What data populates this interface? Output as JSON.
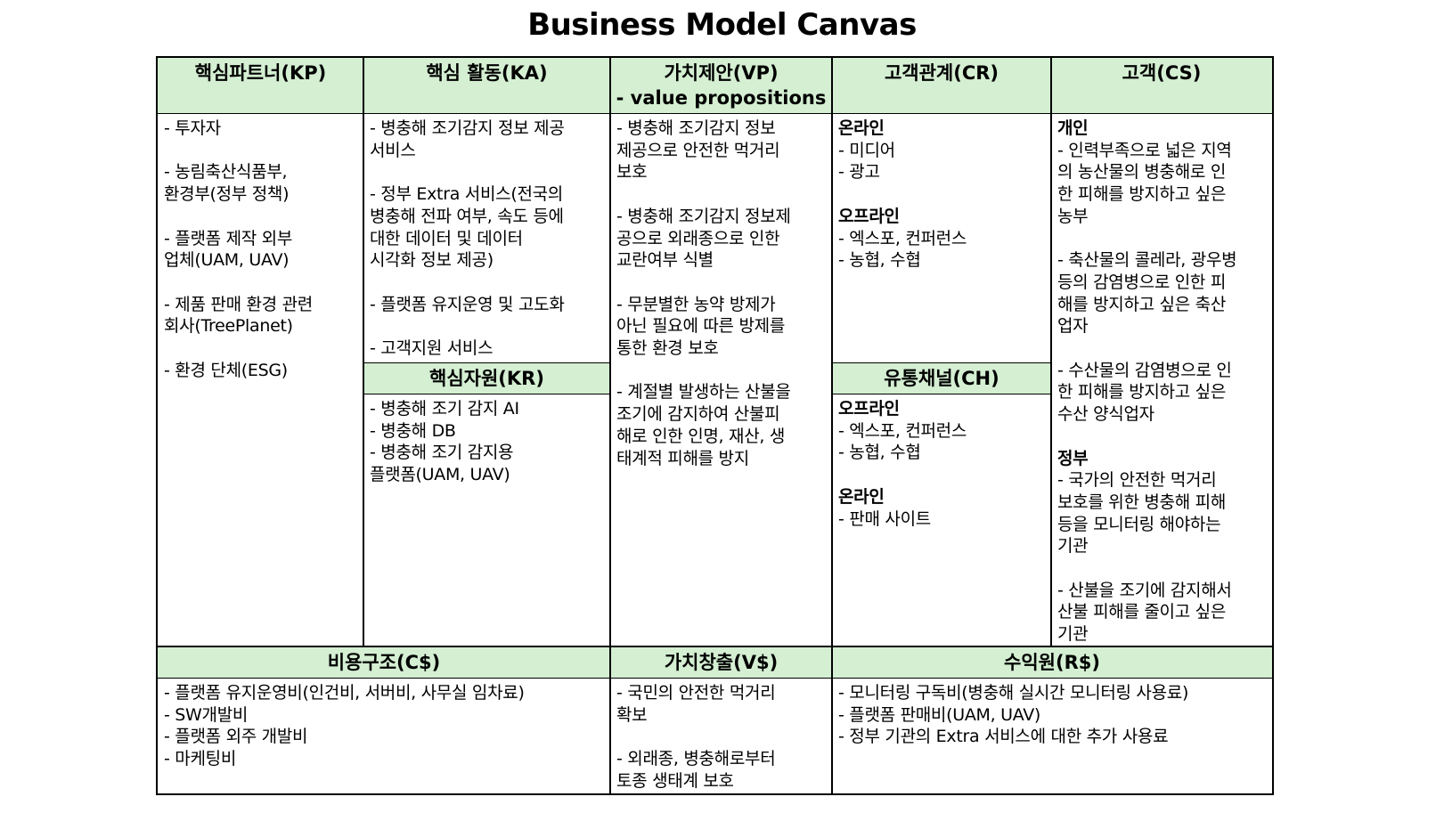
{
  "title": "Business Model Canvas",
  "kp": {
    "header": "핵심파트너(KP)",
    "body": "- 투자자\n\n- 농림축산식품부,\n환경부(정부 정책)\n\n- 플랫폼 제작 외부\n업체(UAM, UAV)\n\n- 제품 판매 환경 관련\n회사(TreePlanet)\n\n- 환경 단체(ESG)"
  },
  "ka": {
    "header": "핵심 활동(KA)",
    "body": "- 병충해 조기감지 정보 제공\n서비스\n\n- 정부 Extra 서비스(전국의\n병충해 전파 여부, 속도 등에\n대한 데이터 및 데이터\n시각화 정보 제공)\n\n- 플랫폼 유지운영 및 고도화\n\n- 고객지원 서비스"
  },
  "kr": {
    "header": "핵심자원(KR)",
    "body": "- 병충해 조기 감지 AI\n- 병충해 DB\n- 병충해 조기 감지용\n플랫폼(UAM, UAV)"
  },
  "vp": {
    "header_line1": "가치제안(VP)",
    "header_line2": "- value propositions",
    "body": "- 병충해 조기감지 정보\n제공으로 안전한 먹거리\n보호\n\n- 병충해 조기감지 정보제\n공으로 외래종으로 인한\n교란여부 식별\n\n- 무분별한 농약 방제가\n아닌 필요에 따른 방제를\n통한 환경 보호\n\n- 계절별 발생하는 산불을\n조기에 감지하여 산불피\n해로 인한 인명, 재산, 생\n태계적 피해를 방지"
  },
  "cr": {
    "header": "고객관계(CR)",
    "group1_title": "온라인",
    "group1_body": "- 미디어\n- 광고",
    "group2_title": "오프라인",
    "group2_body": "- 엑스포, 컨퍼런스\n- 농협, 수협"
  },
  "ch": {
    "header": "유통채널(CH)",
    "group1_title": "오프라인",
    "group1_body": "- 엑스포, 컨퍼런스\n- 농협, 수협",
    "group2_title": "온라인",
    "group2_body": "- 판매 사이트"
  },
  "cs": {
    "header": "고객(CS)",
    "group1_title": "개인",
    "group1_body": "- 인력부족으로 넓은 지역\n의 농산물의 병충해로 인\n한 피해를 방지하고 싶은\n농부\n\n- 축산물의 콜레라, 광우병\n등의 감염병으로 인한 피\n해를 방지하고 싶은 축산\n업자\n\n- 수산물의 감염병으로 인\n한 피해를 방지하고 싶은\n수산 양식업자",
    "group2_title": "정부",
    "group2_body": "- 국가의 안전한 먹거리\n보호를 위한 병충해 피해\n등을 모니터링 해야하는\n기관\n\n- 산불을 조기에 감지해서\n산불 피해를 줄이고 싶은\n기관"
  },
  "cost": {
    "header": "비용구조(C$)",
    "body": "- 플랫폼 유지운영비(인건비, 서버비, 사무실 임차료)\n- SW개발비\n- 플랫폼 외주 개발비\n- 마케팅비"
  },
  "value_creation": {
    "header": "가치창출(V$)",
    "body": "- 국민의 안전한 먹거리\n확보\n\n- 외래종, 병충해로부터\n토종 생태계 보호"
  },
  "revenue": {
    "header": "수익원(R$)",
    "body": "- 모니터링 구독비(병충해 실시간 모니터링 사용료)\n- 플랫폼 판매비(UAM, UAV)\n- 정부 기관의 Extra 서비스에 대한 추가 사용료"
  }
}
